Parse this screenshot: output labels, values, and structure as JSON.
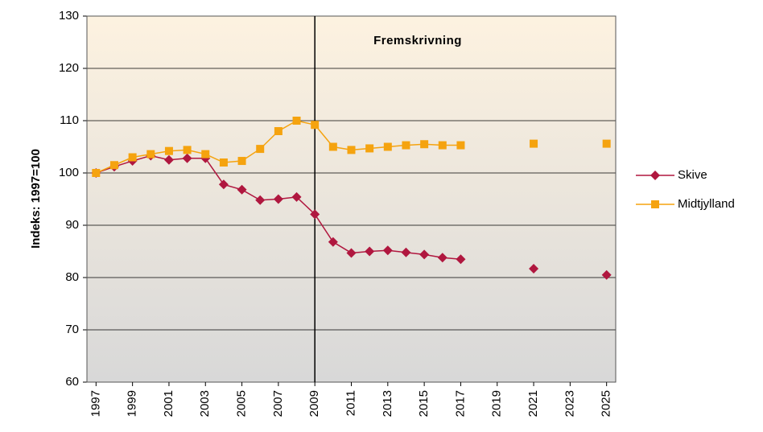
{
  "chart_data": {
    "type": "line",
    "y_axis_label": "Indeks: 1997=100",
    "annotation": "Fremskrivning",
    "projection_start": 2009,
    "x": [
      1997,
      1998,
      1999,
      2000,
      2001,
      2002,
      2003,
      2004,
      2005,
      2006,
      2007,
      2008,
      2009,
      2010,
      2011,
      2012,
      2013,
      2014,
      2015,
      2016,
      2017,
      2018,
      2019,
      2020,
      2021,
      2022,
      2023,
      2024,
      2025
    ],
    "series": [
      {
        "name": "Skive",
        "color": "#b0173f",
        "marker": "diamond",
        "values": [
          100,
          101.2,
          102.3,
          103.3,
          102.5,
          102.8,
          102.8,
          97.8,
          96.8,
          94.8,
          95.0,
          95.4,
          92.1,
          86.8,
          84.7,
          85.0,
          85.2,
          84.8,
          84.4,
          83.8,
          83.5,
          null,
          null,
          null,
          81.7,
          null,
          null,
          null,
          80.5
        ]
      },
      {
        "name": "Midtjylland",
        "color": "#f5a30f",
        "marker": "square",
        "values": [
          100,
          101.5,
          103.0,
          103.6,
          104.2,
          104.4,
          103.6,
          102.0,
          102.3,
          104.6,
          108.0,
          110.0,
          109.2,
          105.0,
          104.4,
          104.7,
          105.0,
          105.3,
          105.5,
          105.3,
          105.3,
          null,
          null,
          null,
          105.6,
          null,
          null,
          null,
          105.6
        ]
      }
    ],
    "xlim": [
      1996.5,
      2025.5
    ],
    "xticks": [
      1997,
      1999,
      2001,
      2003,
      2005,
      2007,
      2009,
      2011,
      2013,
      2015,
      2017,
      2019,
      2021,
      2023,
      2025
    ],
    "ylim": [
      60,
      130
    ],
    "yticks": [
      60,
      70,
      80,
      90,
      100,
      110,
      120,
      130
    ],
    "grid": true,
    "legend": "right"
  }
}
